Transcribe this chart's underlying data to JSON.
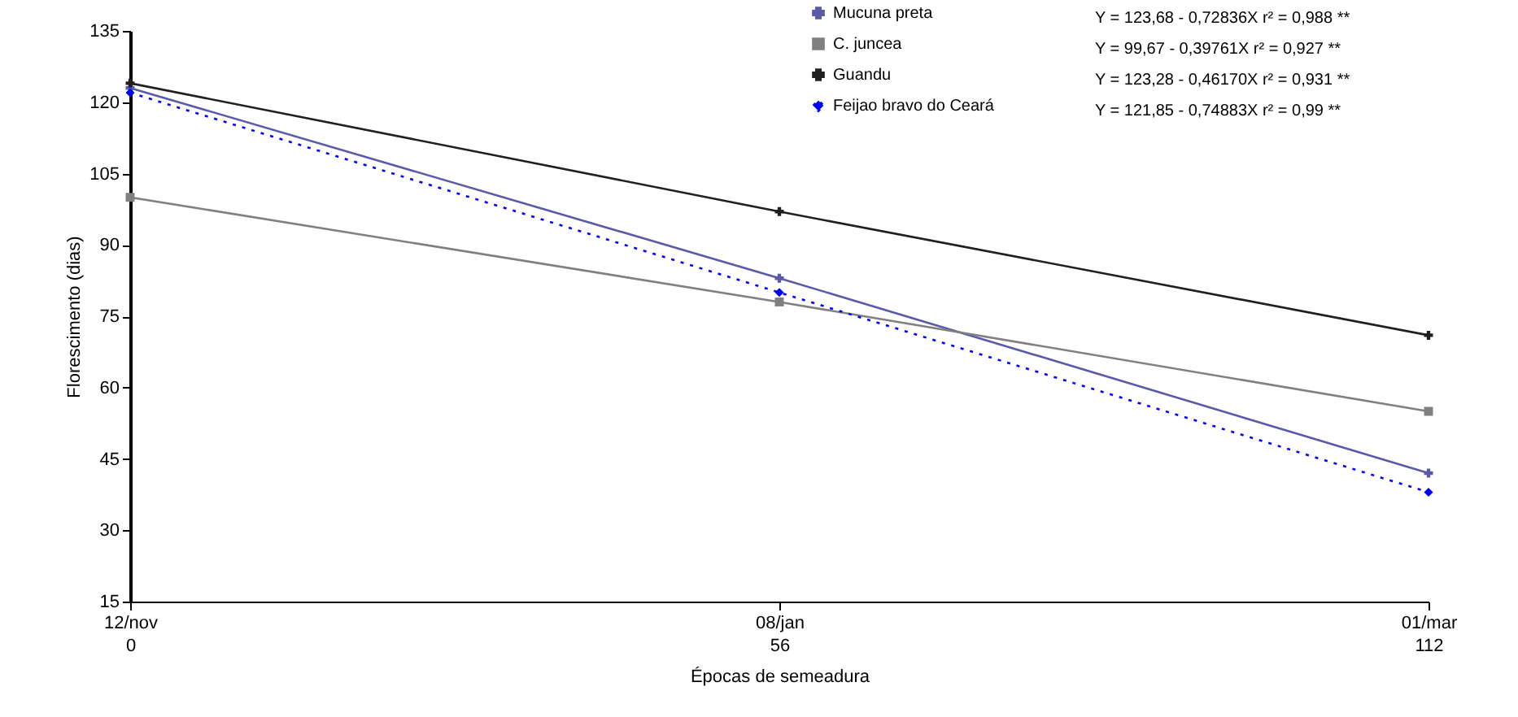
{
  "chart_data": {
    "type": "line",
    "xlabel": "Épocas de semeadura",
    "ylabel": "Florescimento (dias)",
    "categories": [
      "12/nov\n0",
      "08/jan\n56",
      "01/mar\n112"
    ],
    "ylim": [
      15,
      135
    ],
    "yticks": [
      15,
      30,
      45,
      60,
      75,
      90,
      105,
      120,
      135
    ],
    "grid": false,
    "legend": "top right",
    "series": [
      {
        "name": "Mucuna preta",
        "color": "#5a5aa8",
        "marker": "cross",
        "line_style": "solid",
        "values": [
          123,
          83,
          42
        ]
      },
      {
        "name": "C. juncea",
        "color": "#808080",
        "marker": "square",
        "line_style": "solid",
        "values": [
          100,
          78,
          55
        ]
      },
      {
        "name": "Guandu",
        "color": "#202020",
        "marker": "cross",
        "line_style": "solid",
        "values": [
          124,
          97,
          71
        ]
      },
      {
        "name": "Feijao bravo do Ceará",
        "color": "#0000ff",
        "marker": "diamond",
        "line_style": "dotted",
        "values": [
          122,
          80,
          38
        ]
      }
    ],
    "annotations": [
      "Y = 123,68 - 0,72836X    r² = 0,988 **",
      "Y = 99,67 - 0,39761X    r² = 0,927 **",
      "Y = 123,28 - 0,46170X    r² = 0,931 **",
      "Y = 121,85 - 0,74883X    r² = 0,99 **"
    ]
  }
}
